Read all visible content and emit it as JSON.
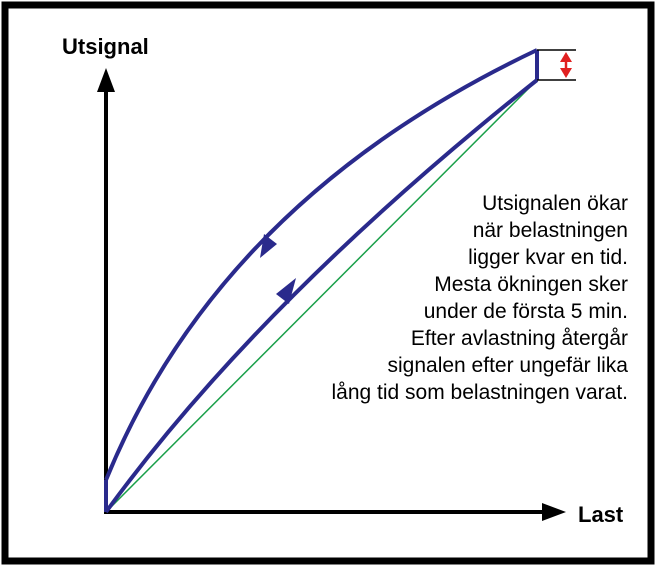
{
  "axes": {
    "y_label": "Utsignal",
    "x_label": "Last"
  },
  "annotation": {
    "lines": [
      "Utsignalen ökar",
      "när belastningen",
      "ligger kvar en tid.",
      "Mesta ökningen sker",
      "under de första 5 min.",
      "Efter avlastning återgår",
      "signalen efter ungefär lika",
      "lång tid som belastningen varat."
    ]
  }
}
